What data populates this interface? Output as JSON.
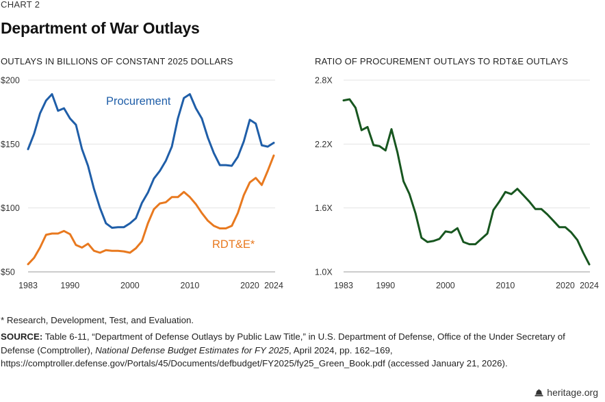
{
  "header": {
    "chart_label": "CHART 2",
    "title": "Department of War Outlays"
  },
  "footnote": "* Research, Development, Test, and Evaluation.",
  "source": {
    "label": "SOURCE:",
    "text_1": " Table 6-11, “Department of Defense Outlays by Public Law Title,” in U.S. Department of Defense, Office of the Under Secretary of Defense (Comptroller), ",
    "italic": "National Defense Budget Estimates for FY 2025",
    "text_2": ", April 2024, pp. 162–169, https://comptroller.defense.gov/Portals/45/Documents/defbudget/FY2025/fy25_Green_Book.pdf (accessed January 21, 2026)."
  },
  "brand": "heritage.org",
  "colors": {
    "procurement": "#1f5ea8",
    "rdte": "#e8791f",
    "ratio": "#17561f",
    "grid": "#e3e3e3"
  },
  "chart_data": [
    {
      "type": "line",
      "title": "OUTLAYS IN BILLIONS OF CONSTANT 2025 DOLLARS",
      "xlabel": "",
      "ylabel": "",
      "xlim": [
        1983,
        2024
      ],
      "ylim": [
        50,
        200
      ],
      "x_ticks": [
        1983,
        1990,
        2000,
        2010,
        2020,
        2024
      ],
      "y_ticks": [
        {
          "value": 200,
          "label": "$200"
        },
        {
          "value": 150,
          "label": "$150"
        },
        {
          "value": 100,
          "label": "$100"
        },
        {
          "value": 50,
          "label": "$50"
        }
      ],
      "grid": true,
      "series": [
        {
          "name": "Procurement",
          "label": "Procurement",
          "color": "#1f5ea8",
          "x": [
            1983,
            1984,
            1985,
            1986,
            1987,
            1988,
            1989,
            1990,
            1991,
            1992,
            1993,
            1994,
            1995,
            1996,
            1997,
            1998,
            1999,
            2000,
            2001,
            2002,
            2003,
            2004,
            2005,
            2006,
            2007,
            2008,
            2009,
            2010,
            2011,
            2012,
            2013,
            2014,
            2015,
            2016,
            2017,
            2018,
            2019,
            2020,
            2021,
            2022,
            2023,
            2024
          ],
          "values": [
            146,
            158,
            174,
            184,
            189,
            176,
            178,
            170,
            165,
            146,
            133,
            115,
            100,
            88,
            84.5,
            85,
            85,
            88,
            92,
            104,
            112,
            123,
            129,
            137,
            148,
            170,
            186,
            189,
            178,
            170,
            155,
            143,
            133.5,
            133.5,
            133,
            140,
            152,
            169,
            166,
            149,
            148,
            151
          ]
        },
        {
          "name": "RDT&E*",
          "label": "RDT&E*",
          "color": "#e8791f",
          "x": [
            1983,
            1984,
            1985,
            1986,
            1987,
            1988,
            1989,
            1990,
            1991,
            1992,
            1993,
            1994,
            1995,
            1996,
            1997,
            1998,
            1999,
            2000,
            2001,
            2002,
            2003,
            2004,
            2005,
            2006,
            2007,
            2008,
            2009,
            2010,
            2011,
            2012,
            2013,
            2014,
            2015,
            2016,
            2017,
            2018,
            2019,
            2020,
            2021,
            2022,
            2023,
            2024
          ],
          "values": [
            56,
            61,
            69,
            79,
            80,
            80,
            82,
            79.5,
            71,
            69,
            72,
            66.5,
            65,
            67,
            66.5,
            66.5,
            66,
            65,
            68.5,
            74,
            88,
            99,
            103.5,
            104.5,
            108.5,
            108.5,
            112.5,
            108.5,
            103,
            96,
            90,
            86,
            84,
            84,
            86,
            96,
            110,
            120,
            123.5,
            118,
            129,
            141
          ]
        }
      ]
    },
    {
      "type": "line",
      "title": "RATIO OF PROCUREMENT OUTLAYS TO RDT&E OUTLAYS",
      "xlabel": "",
      "ylabel": "",
      "xlim": [
        1983,
        2024
      ],
      "ylim": [
        1.0,
        2.8
      ],
      "x_ticks": [
        1983,
        1990,
        2000,
        2010,
        2020,
        2024
      ],
      "y_ticks": [
        {
          "value": 2.8,
          "label": "2.8X"
        },
        {
          "value": 2.2,
          "label": "2.2X"
        },
        {
          "value": 1.6,
          "label": "1.6X"
        },
        {
          "value": 1.0,
          "label": "1.0X"
        }
      ],
      "grid": true,
      "series": [
        {
          "name": "Procurement-to-RDT&E ratio",
          "color": "#17561f",
          "x": [
            1983,
            1984,
            1985,
            1986,
            1987,
            1988,
            1989,
            1990,
            1991,
            1992,
            1993,
            1994,
            1995,
            1996,
            1997,
            1998,
            1999,
            2000,
            2001,
            2002,
            2003,
            2004,
            2005,
            2006,
            2007,
            2008,
            2009,
            2010,
            2011,
            2012,
            2013,
            2014,
            2015,
            2016,
            2017,
            2018,
            2019,
            2020,
            2021,
            2022,
            2023,
            2024
          ],
          "values": [
            2.61,
            2.62,
            2.54,
            2.33,
            2.36,
            2.19,
            2.18,
            2.14,
            2.34,
            2.12,
            1.85,
            1.73,
            1.55,
            1.32,
            1.28,
            1.29,
            1.31,
            1.38,
            1.37,
            1.41,
            1.28,
            1.26,
            1.26,
            1.31,
            1.36,
            1.58,
            1.66,
            1.75,
            1.73,
            1.78,
            1.72,
            1.66,
            1.59,
            1.59,
            1.54,
            1.48,
            1.42,
            1.42,
            1.37,
            1.3,
            1.18,
            1.07
          ]
        }
      ]
    }
  ]
}
